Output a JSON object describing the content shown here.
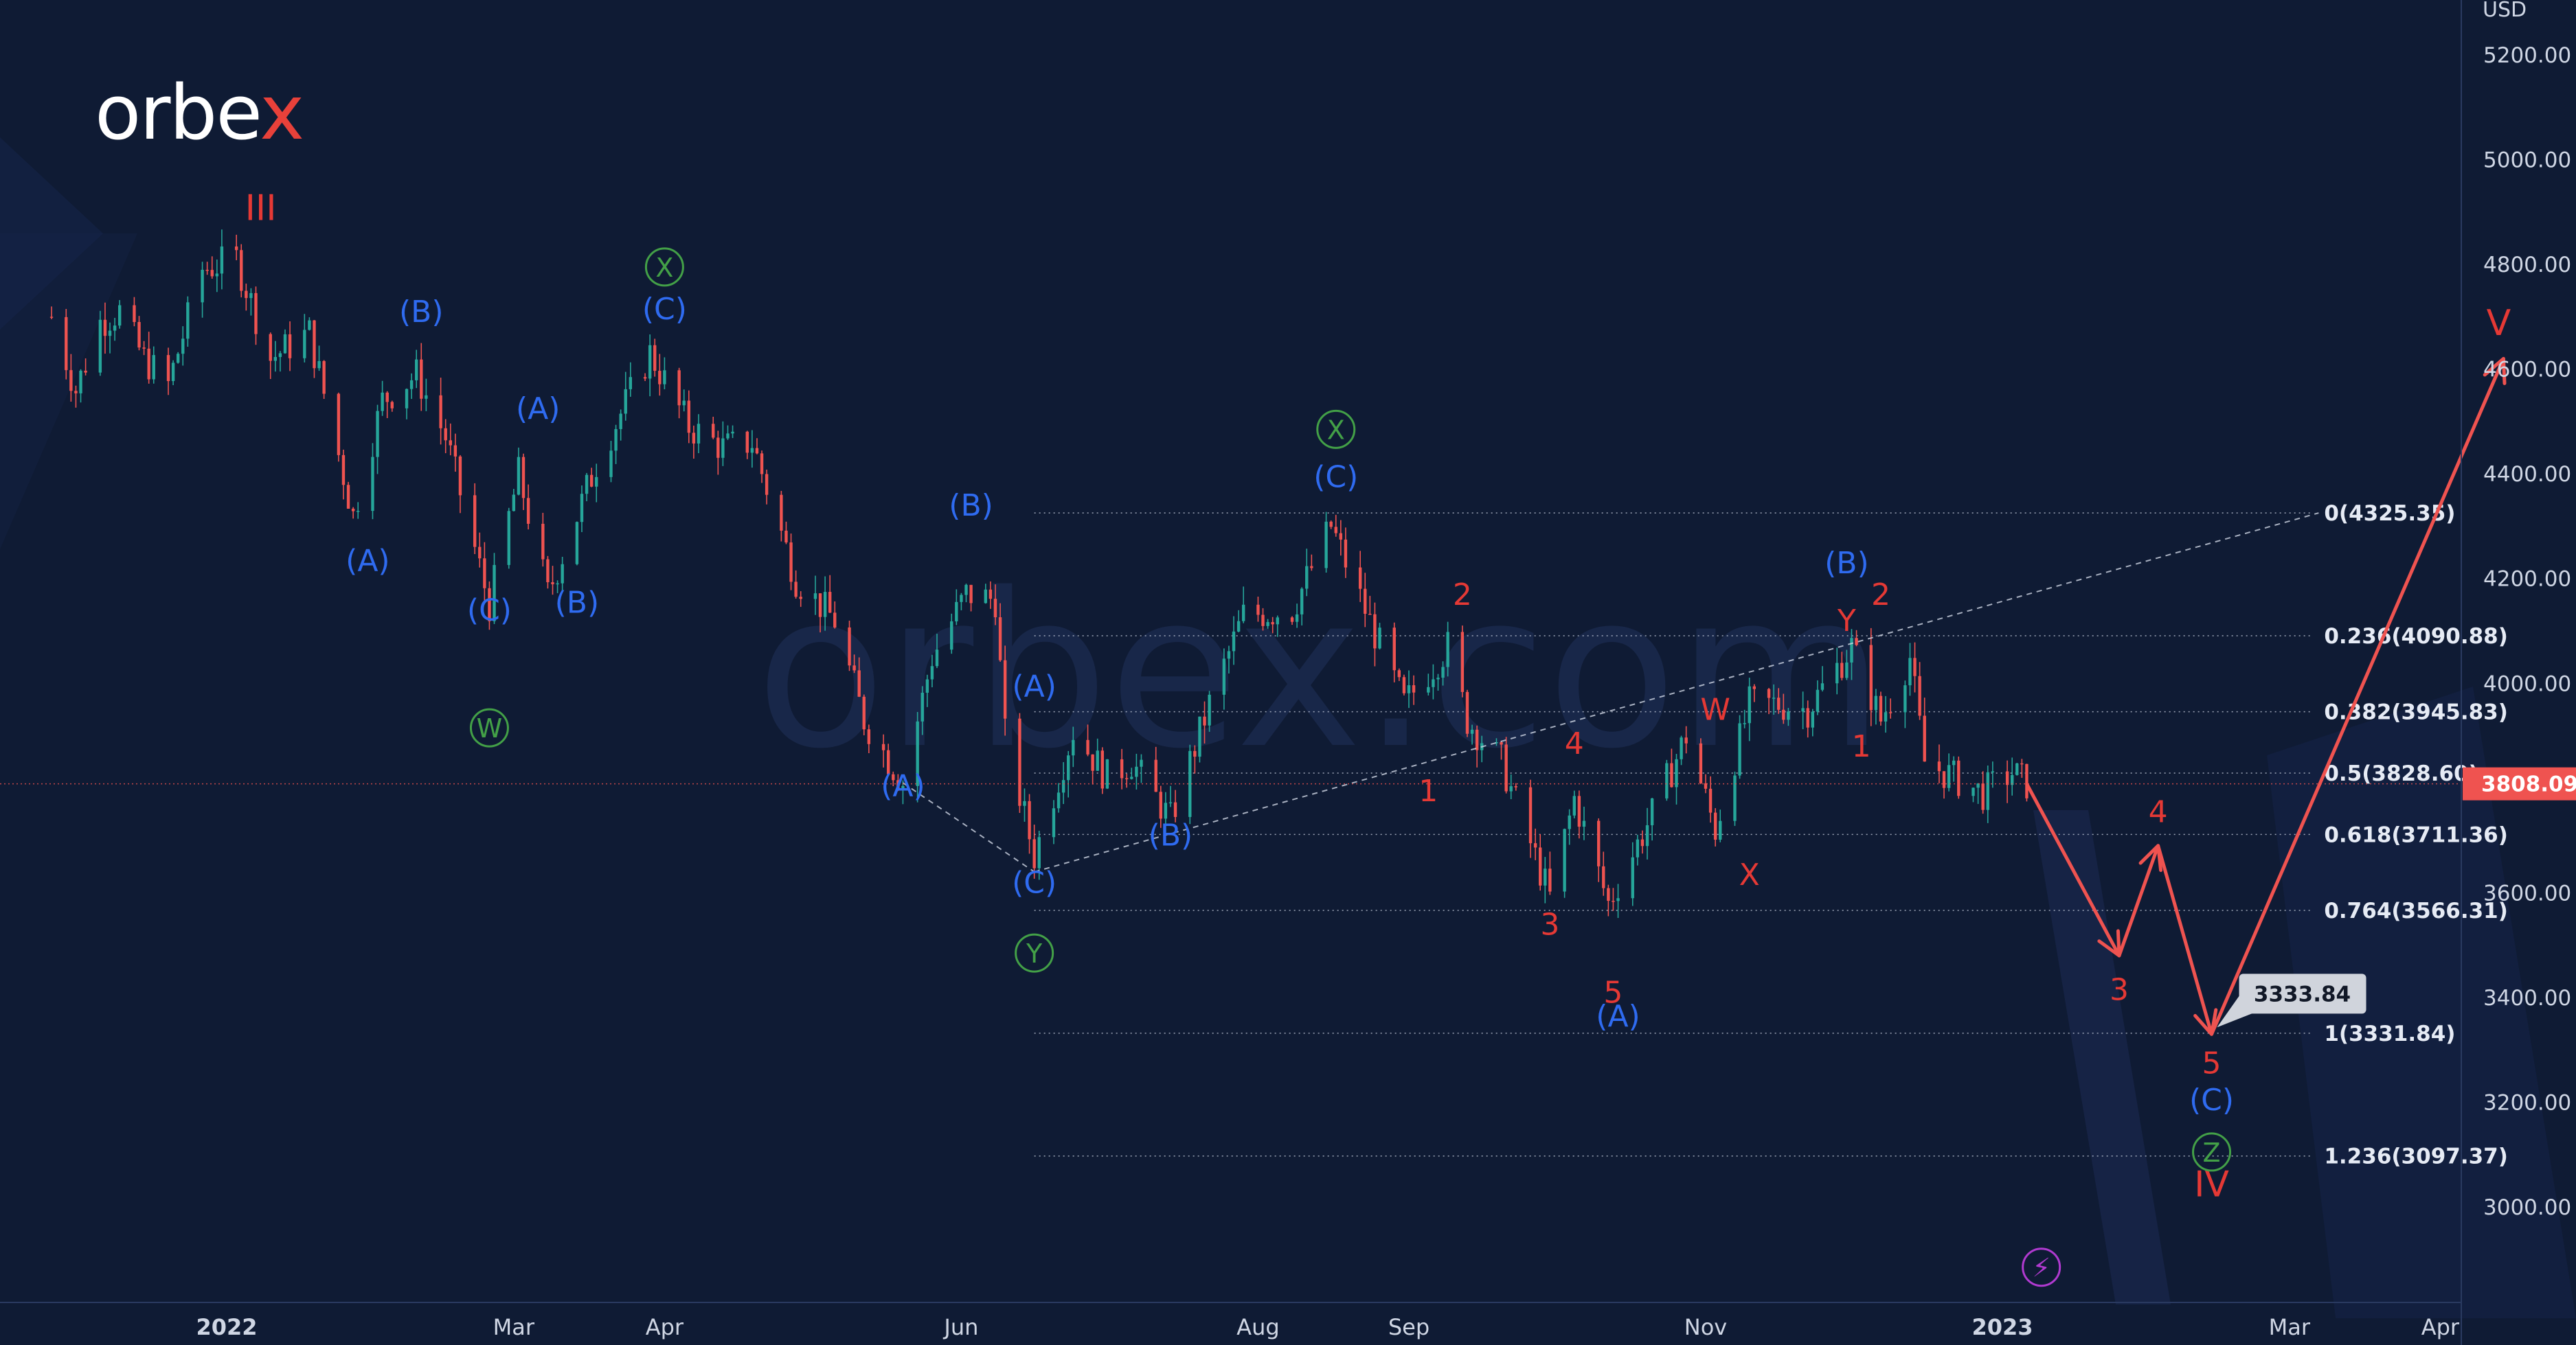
{
  "brand": {
    "logo_main": "orbe",
    "logo_x": "x",
    "watermark": "orbex.com"
  },
  "axis": {
    "currency": "USD",
    "y_ticks": [
      "5200.00",
      "5000.00",
      "4800.00",
      "4600.00",
      "4400.00",
      "4200.00",
      "4000.00",
      "3800.00",
      "3600.00",
      "3400.00",
      "3200.00",
      "3000.00"
    ],
    "x_ticks": [
      "2022",
      "Mar",
      "Apr",
      "Jun",
      "Aug",
      "Sep",
      "Nov",
      "2023",
      "Mar",
      "Apr"
    ],
    "current_price": "3808.09",
    "target_price": "3333.84"
  },
  "chart_data": {
    "type": "line",
    "title": "",
    "xlabel": "",
    "ylabel": "USD",
    "ylim": [
      2850,
      5300
    ],
    "x_range": [
      "2021-11-25",
      "2023-04-25"
    ],
    "grid": false,
    "colors": {
      "background": "#0f1b34",
      "candle_up": "#26a69a",
      "candle_down": "#ef5350",
      "wave_blue": "#2f6bf0",
      "wave_red": "#e53935",
      "wave_green": "#43a047",
      "fib": "#cfd6e4",
      "price_line": "#ef5350"
    },
    "series": [
      {
        "values": [
          [
            "2021-11-26",
            4700
          ],
          [
            "2021-12-01",
            4560
          ],
          [
            "2021-12-06",
            4690
          ],
          [
            "2021-12-10",
            4710
          ],
          [
            "2021-12-15",
            4620
          ],
          [
            "2021-12-20",
            4570
          ],
          [
            "2021-12-27",
            4790
          ],
          [
            "2022-01-03",
            4810
          ],
          [
            "2022-01-10",
            4620
          ],
          [
            "2022-01-18",
            4670
          ],
          [
            "2022-01-27",
            4320
          ],
          [
            "2022-02-02",
            4540
          ],
          [
            "2022-02-09",
            4590
          ],
          [
            "2022-02-15",
            4470
          ],
          [
            "2022-02-24",
            4150
          ],
          [
            "2022-03-02",
            4400
          ],
          [
            "2022-03-08",
            4170
          ],
          [
            "2022-03-18",
            4420
          ],
          [
            "2022-03-29",
            4630
          ],
          [
            "2022-04-06",
            4490
          ],
          [
            "2022-04-13",
            4450
          ],
          [
            "2022-04-19",
            4460
          ],
          [
            "2022-04-28",
            4200
          ],
          [
            "2022-05-06",
            4120
          ],
          [
            "2022-05-12",
            3930
          ],
          [
            "2022-05-20",
            3810
          ],
          [
            "2022-05-26",
            4050
          ],
          [
            "2022-06-02",
            4170
          ],
          [
            "2022-06-08",
            4160
          ],
          [
            "2022-06-10",
            3900
          ],
          [
            "2022-06-16",
            3670
          ],
          [
            "2022-06-24",
            3910
          ],
          [
            "2022-07-01",
            3820
          ],
          [
            "2022-07-06",
            3850
          ],
          [
            "2022-07-14",
            3740
          ],
          [
            "2022-07-22",
            3960
          ],
          [
            "2022-07-29",
            4130
          ],
          [
            "2022-08-08",
            4140
          ],
          [
            "2022-08-16",
            4300
          ],
          [
            "2022-08-23",
            4140
          ],
          [
            "2022-08-31",
            3960
          ],
          [
            "2022-09-09",
            4070
          ],
          [
            "2022-09-13",
            3930
          ],
          [
            "2022-09-20",
            3850
          ],
          [
            "2022-09-30",
            3590
          ],
          [
            "2022-10-05",
            3780
          ],
          [
            "2022-10-12",
            3580
          ],
          [
            "2022-10-21",
            3750
          ],
          [
            "2022-10-28",
            3900
          ],
          [
            "2022-11-03",
            3720
          ],
          [
            "2022-11-10",
            3960
          ],
          [
            "2022-11-16",
            3960
          ],
          [
            "2022-11-22",
            3950
          ],
          [
            "2022-12-01",
            4070
          ],
          [
            "2022-12-07",
            3930
          ],
          [
            "2022-12-13",
            4050
          ],
          [
            "2022-12-16",
            3850
          ],
          [
            "2022-12-22",
            3820
          ],
          [
            "2022-12-28",
            3790
          ],
          [
            "2023-01-03",
            3830
          ],
          [
            "2023-01-06",
            3808.09
          ]
        ]
      }
    ],
    "fib_levels": [
      {
        "label": "0(4325.35)",
        "value": 4325.35
      },
      {
        "label": "0.236(4090.88)",
        "value": 4090.88
      },
      {
        "label": "0.382(3945.83)",
        "value": 3945.83
      },
      {
        "label": "0.5(3828.60)",
        "value": 3828.6
      },
      {
        "label": "0.618(3711.36)",
        "value": 3711.36
      },
      {
        "label": "0.764(3566.31)",
        "value": 3566.31
      },
      {
        "label": "1(3331.84)",
        "value": 3331.84
      },
      {
        "label": "1.236(3097.37)",
        "value": 3097.37
      }
    ],
    "fib_start": "2022-06-16",
    "trendline_base": [
      [
        "2022-05-20",
        3810
      ],
      [
        "2022-06-16",
        3640
      ]
    ],
    "trendline_dashed": [
      [
        "2022-06-16",
        3640
      ],
      [
        "2023-03-07",
        4325.35
      ]
    ],
    "projection": [
      [
        "2023-01-06",
        3808.09
      ],
      [
        "2023-01-25",
        3480
      ],
      [
        "2023-02-02",
        3690
      ],
      [
        "2023-02-13",
        3330
      ],
      [
        "2023-04-14",
        4620
      ]
    ],
    "labels": [
      {
        "text": "III",
        "date": "2022-01-08",
        "price": 4885,
        "color": "red"
      },
      {
        "text": "(A)",
        "date": "2022-01-30",
        "price": 4215,
        "color": "blue"
      },
      {
        "text": "(B)",
        "date": "2022-02-10",
        "price": 4690,
        "color": "blue"
      },
      {
        "text": "(A)",
        "date": "2022-03-06",
        "price": 4505,
        "color": "blue"
      },
      {
        "text": "(C)",
        "date": "2022-02-24",
        "price": 4120,
        "color": "blue"
      },
      {
        "text": "(B)",
        "date": "2022-03-14",
        "price": 4135,
        "color": "blue"
      },
      {
        "text": "(C)",
        "date": "2022-04-01",
        "price": 4695,
        "color": "blue"
      },
      {
        "text": "(B)",
        "date": "2022-06-03",
        "price": 4320,
        "color": "blue"
      },
      {
        "text": "(A)",
        "date": "2022-06-16",
        "price": 3975,
        "color": "blue"
      },
      {
        "text": "(A)",
        "date": "2022-05-20",
        "price": 3785,
        "color": "blue"
      },
      {
        "text": "(B)",
        "date": "2022-07-14",
        "price": 3690,
        "color": "blue"
      },
      {
        "text": "(C)",
        "date": "2022-06-16",
        "price": 3600,
        "color": "blue"
      },
      {
        "text": "(C)",
        "date": "2022-08-17",
        "price": 4375,
        "color": "blue"
      },
      {
        "text": "(A)",
        "date": "2022-10-14",
        "price": 3345,
        "color": "blue"
      },
      {
        "text": "(B)",
        "date": "2022-11-30",
        "price": 4210,
        "color": "blue"
      },
      {
        "text": "(C)",
        "date": "2023-02-13",
        "price": 3185,
        "color": "blue"
      },
      {
        "text": "2",
        "date": "2022-09-12",
        "price": 4150,
        "color": "red"
      },
      {
        "text": "1",
        "date": "2022-09-05",
        "price": 3775,
        "color": "red"
      },
      {
        "text": "4",
        "date": "2022-10-05",
        "price": 3865,
        "color": "red"
      },
      {
        "text": "3",
        "date": "2022-09-30",
        "price": 3520,
        "color": "red"
      },
      {
        "text": "5",
        "date": "2022-10-13",
        "price": 3390,
        "color": "red"
      },
      {
        "text": "W",
        "date": "2022-11-03",
        "price": 3930,
        "color": "red"
      },
      {
        "text": "X",
        "date": "2022-11-10",
        "price": 3615,
        "color": "red"
      },
      {
        "text": "Y",
        "date": "2022-11-30",
        "price": 4100,
        "color": "red"
      },
      {
        "text": "2",
        "date": "2022-12-07",
        "price": 4150,
        "color": "red"
      },
      {
        "text": "1",
        "date": "2022-12-03",
        "price": 3860,
        "color": "red"
      },
      {
        "text": "4",
        "date": "2023-02-02",
        "price": 3735,
        "color": "red"
      },
      {
        "text": "3",
        "date": "2023-01-25",
        "price": 3395,
        "color": "red"
      },
      {
        "text": "5",
        "date": "2023-02-13",
        "price": 3255,
        "color": "red"
      },
      {
        "text": "IV",
        "date": "2023-02-13",
        "price": 3020,
        "color": "red"
      },
      {
        "text": "V",
        "date": "2023-04-13",
        "price": 4665,
        "color": "red"
      }
    ],
    "circle_labels": [
      {
        "text": "X",
        "date": "2022-04-01",
        "price": 4795,
        "color": "green"
      },
      {
        "text": "W",
        "date": "2022-02-24",
        "price": 3915,
        "color": "green"
      },
      {
        "text": "X",
        "date": "2022-08-17",
        "price": 4485,
        "color": "green"
      },
      {
        "text": "Y",
        "date": "2022-06-16",
        "price": 3485,
        "color": "green"
      },
      {
        "text": "Z",
        "date": "2023-02-13",
        "price": 3105,
        "color": "green"
      },
      {
        "text": "⚡",
        "date": "2023-01-09",
        "price": 2885,
        "color": "purple"
      }
    ]
  }
}
